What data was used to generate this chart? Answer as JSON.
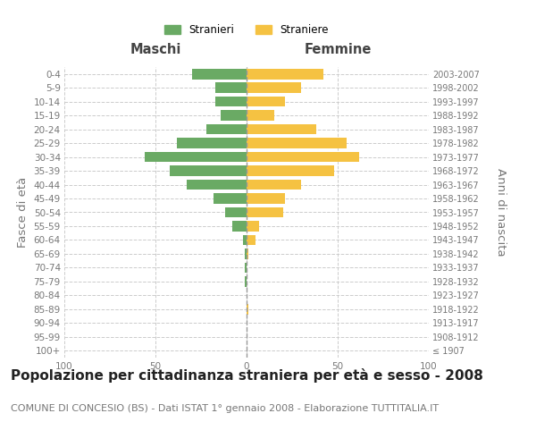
{
  "age_groups": [
    "100+",
    "95-99",
    "90-94",
    "85-89",
    "80-84",
    "75-79",
    "70-74",
    "65-69",
    "60-64",
    "55-59",
    "50-54",
    "45-49",
    "40-44",
    "35-39",
    "30-34",
    "25-29",
    "20-24",
    "15-19",
    "10-14",
    "5-9",
    "0-4"
  ],
  "birth_years": [
    "≤ 1907",
    "1908-1912",
    "1913-1917",
    "1918-1922",
    "1923-1927",
    "1928-1932",
    "1933-1937",
    "1938-1942",
    "1943-1947",
    "1948-1952",
    "1953-1957",
    "1958-1962",
    "1963-1967",
    "1968-1972",
    "1973-1977",
    "1978-1982",
    "1983-1987",
    "1988-1992",
    "1993-1997",
    "1998-2002",
    "2003-2007"
  ],
  "maschi": [
    0,
    0,
    0,
    0,
    0,
    1,
    1,
    1,
    2,
    8,
    12,
    18,
    33,
    42,
    56,
    38,
    22,
    14,
    17,
    17,
    30
  ],
  "femmine": [
    0,
    0,
    0,
    1,
    0,
    0,
    0,
    1,
    5,
    7,
    20,
    21,
    30,
    48,
    62,
    55,
    38,
    15,
    21,
    30,
    42
  ],
  "maschi_color": "#6aaa64",
  "femmine_color": "#f5c242",
  "background_color": "#ffffff",
  "grid_color": "#cccccc",
  "title": "Popolazione per cittadinanza straniera per età e sesso - 2008",
  "subtitle": "COMUNE DI CONCESIO (BS) - Dati ISTAT 1° gennaio 2008 - Elaborazione TUTTITALIA.IT",
  "xlabel_left": "Maschi",
  "xlabel_right": "Femmine",
  "ylabel_left": "Fasce di età",
  "ylabel_right": "Anni di nascita",
  "legend_stranieri": "Stranieri",
  "legend_straniere": "Straniere",
  "xlim": 100,
  "title_fontsize": 11,
  "subtitle_fontsize": 8,
  "tick_fontsize": 7.5,
  "label_fontsize": 9.5
}
